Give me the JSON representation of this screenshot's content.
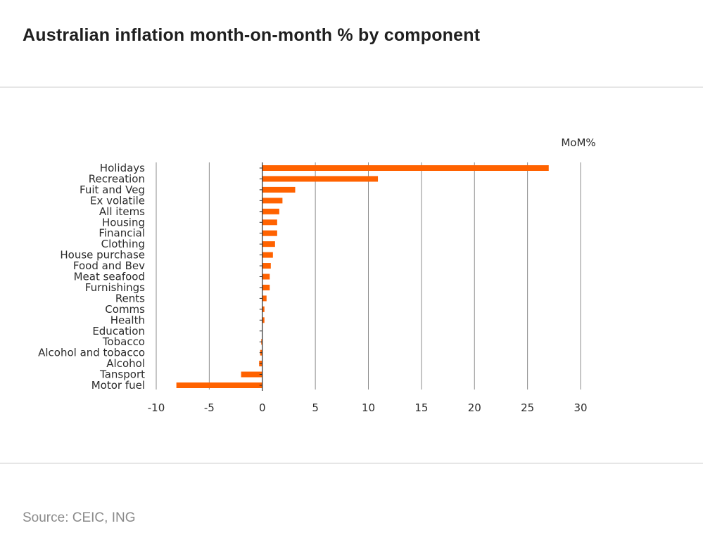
{
  "title": "Australian inflation month-on-month % by component",
  "source": "Source: CEIC, ING",
  "colors": {
    "bar": "#FF6200",
    "grid": "#8c8c8c",
    "axis": "#2b2b2b"
  },
  "chart_data": {
    "type": "bar",
    "orientation": "horizontal",
    "title": "Australian inflation month-on-month % by component",
    "unit_label": "MoM%",
    "xlim": [
      -10,
      30
    ],
    "xticks": [
      -10,
      -5,
      0,
      5,
      10,
      15,
      20,
      25,
      30
    ],
    "grid": true,
    "categories": [
      "Holidays",
      "Recreation",
      "Fuit and Veg",
      "Ex volatile",
      "All items",
      "Housing",
      "Financial",
      "Clothing",
      "House purchase",
      "Food and Bev",
      "Meat seafood",
      "Furnishings",
      "Rents",
      "Comms",
      "Health",
      "Education",
      "Tobacco",
      "Alcohol and tobacco",
      "Alcohol",
      "Tansport",
      "Motor fuel"
    ],
    "series": [
      {
        "name": "MoM%",
        "values": [
          27.0,
          10.9,
          3.1,
          1.9,
          1.6,
          1.4,
          1.4,
          1.2,
          1.0,
          0.8,
          0.7,
          0.7,
          0.4,
          0.2,
          0.2,
          0.0,
          -0.1,
          -0.2,
          -0.3,
          -2.0,
          -8.1
        ]
      }
    ]
  }
}
